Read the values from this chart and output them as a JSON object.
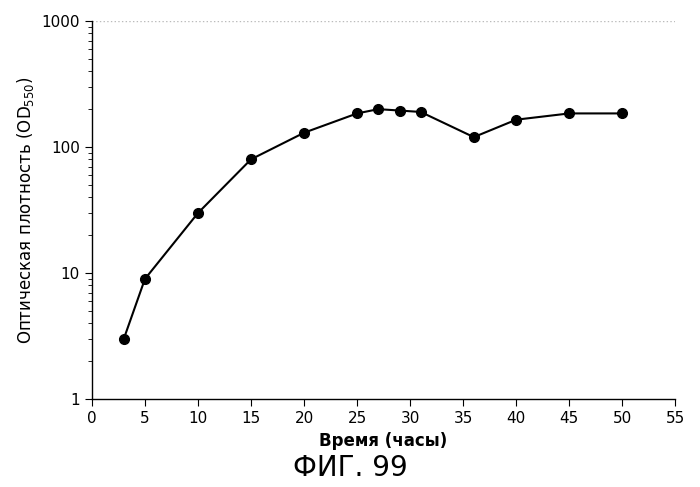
{
  "x": [
    3,
    5,
    10,
    15,
    20,
    25,
    27,
    29,
    31,
    36,
    40,
    45,
    50
  ],
  "y": [
    3.0,
    9.0,
    30,
    80,
    130,
    185,
    200,
    195,
    190,
    120,
    165,
    185,
    185
  ],
  "xlim": [
    0,
    55
  ],
  "ylim": [
    1,
    1000
  ],
  "xticks": [
    0,
    5,
    10,
    15,
    20,
    25,
    30,
    35,
    40,
    45,
    50,
    55
  ],
  "yticks_major": [
    1,
    10,
    100,
    1000
  ],
  "xlabel": "Время (часы)",
  "ylabel": "Оптическая плотность (OD₅₅₀)",
  "title": "ФИГ. 99",
  "line_color": "#000000",
  "marker_color": "#000000",
  "background_color": "#ffffff",
  "grid_color": "#bbbbbb",
  "marker_size": 7,
  "line_width": 1.5,
  "title_fontsize": 20,
  "label_fontsize": 12,
  "tick_fontsize": 11
}
